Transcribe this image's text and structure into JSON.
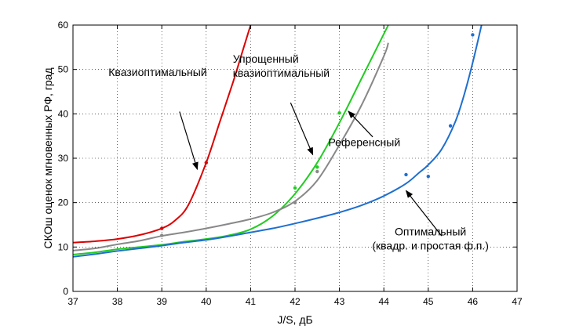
{
  "chart_data": {
    "type": "line",
    "xlabel": "J/S, дБ",
    "ylabel": "СКОш оценок мгновенных РФ, град",
    "xlim": [
      37,
      47
    ],
    "ylim": [
      0,
      60
    ],
    "xticks": [
      37,
      38,
      39,
      40,
      41,
      42,
      43,
      44,
      45,
      46,
      47
    ],
    "yticks": [
      0,
      10,
      20,
      30,
      40,
      50,
      60
    ],
    "grid": true,
    "series": [
      {
        "name": "Квазиоптимальный",
        "color": "#dd0000",
        "curve": [
          [
            37,
            11
          ],
          [
            37.5,
            11.3
          ],
          [
            38,
            11.8
          ],
          [
            38.5,
            12.7
          ],
          [
            39,
            14.2
          ],
          [
            39.3,
            16
          ],
          [
            39.6,
            19.5
          ],
          [
            40,
            29
          ],
          [
            40.3,
            38
          ],
          [
            40.6,
            47
          ],
          [
            40.8,
            53.5
          ],
          [
            41,
            60
          ]
        ],
        "points": [
          [
            39,
            14.2
          ],
          [
            40,
            29
          ]
        ]
      },
      {
        "name": "Упрощенный квазиоптимальный",
        "color": "#22cc22",
        "curve": [
          [
            37,
            8.3
          ],
          [
            37.5,
            8.8
          ],
          [
            38,
            9.5
          ],
          [
            38.5,
            10
          ],
          [
            39,
            10.5
          ],
          [
            39.5,
            11.2
          ],
          [
            40,
            11.8
          ],
          [
            40.5,
            12.6
          ],
          [
            41,
            14
          ],
          [
            41.5,
            17
          ],
          [
            42,
            22
          ],
          [
            42.5,
            29
          ],
          [
            43,
            38
          ],
          [
            43.5,
            48
          ],
          [
            44,
            58
          ],
          [
            44.1,
            60
          ]
        ],
        "points": [
          [
            42,
            23.3
          ],
          [
            42.5,
            28
          ],
          [
            43,
            40.2
          ]
        ]
      },
      {
        "name": "Референсный",
        "color": "#888888",
        "curve": [
          [
            37,
            9.2
          ],
          [
            37.5,
            9.7
          ],
          [
            38,
            10.6
          ],
          [
            38.5,
            11.4
          ],
          [
            39,
            12.5
          ],
          [
            39.5,
            13.3
          ],
          [
            40,
            14.2
          ],
          [
            40.5,
            15.2
          ],
          [
            41,
            16.3
          ],
          [
            41.5,
            17.8
          ],
          [
            42,
            20.3
          ],
          [
            42.5,
            25
          ],
          [
            43,
            33
          ],
          [
            43.5,
            42
          ],
          [
            44,
            53
          ],
          [
            44.1,
            56
          ]
        ],
        "points": [
          [
            39,
            12.6
          ],
          [
            42,
            20
          ],
          [
            42.5,
            27
          ]
        ]
      },
      {
        "name": "Оптимальный (квадр. и простая ф.п.)",
        "color": "#1e6fd0",
        "curve": [
          [
            37,
            7.8
          ],
          [
            37.5,
            8.4
          ],
          [
            38,
            9.1
          ],
          [
            38.5,
            9.7
          ],
          [
            39,
            10.3
          ],
          [
            39.5,
            11
          ],
          [
            40,
            11.6
          ],
          [
            40.5,
            12.4
          ],
          [
            41,
            13.3
          ],
          [
            41.5,
            14.2
          ],
          [
            42,
            15.3
          ],
          [
            42.5,
            16.5
          ],
          [
            43,
            17.8
          ],
          [
            43.5,
            19.4
          ],
          [
            44,
            21.5
          ],
          [
            44.5,
            24.3
          ],
          [
            44.8,
            26.8
          ],
          [
            45,
            28.5
          ],
          [
            45.3,
            32
          ],
          [
            45.6,
            38
          ],
          [
            45.8,
            44
          ],
          [
            46,
            51.5
          ],
          [
            46.2,
            60
          ]
        ],
        "points": [
          [
            44.5,
            26.3
          ],
          [
            45,
            25.9
          ],
          [
            45.5,
            37.3
          ],
          [
            46,
            57.8
          ]
        ]
      }
    ],
    "annotations": [
      {
        "lines": [
          "Квазиоптимальный"
        ],
        "text_at": [
          37.8,
          48.5
        ],
        "anchor": "start",
        "arrow_from": [
          39.4,
          40.5
        ],
        "arrow_to": [
          39.8,
          27.5
        ]
      },
      {
        "lines": [
          "Упрощенный",
          "квазиоптимальный"
        ],
        "text_at": [
          40.6,
          51.5
        ],
        "anchor": "start",
        "arrow_from": [
          41.9,
          42.5
        ],
        "arrow_to": [
          42.4,
          30.8
        ]
      },
      {
        "lines": [
          "Референсный"
        ],
        "text_at": [
          42.75,
          32.7
        ],
        "anchor": "start",
        "arrow_from": [
          43.75,
          34.8
        ],
        "arrow_to": [
          43.2,
          40.6
        ]
      },
      {
        "lines": [
          "Оптимальный",
          "(квадр. и простая ф.п.)"
        ],
        "text_at": [
          45.05,
          12.6
        ],
        "anchor": "middle",
        "arrow_from": [
          45.3,
          12.5
        ],
        "arrow_to": [
          44.5,
          22.7
        ]
      }
    ]
  }
}
